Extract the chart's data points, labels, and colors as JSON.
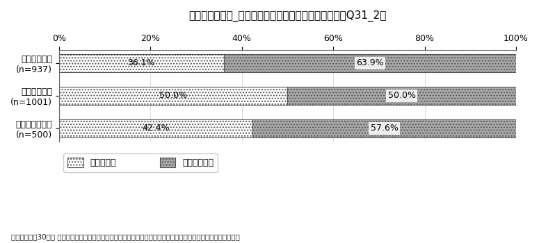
{
  "title": "制度の認知状況_男性の育児休業の再取得：単数回答（Q31_2）",
  "categories": [
    "男性・正社員\n(n=937)",
    "女性・正社員\n(n=1001)",
    "女性・非正社員\n(n=500)"
  ],
  "knew": [
    36.1,
    50.0,
    42.4
  ],
  "did_not_know": [
    63.9,
    50.0,
    57.6
  ],
  "legend_labels": [
    "知っていた",
    "知らなかった"
  ],
  "source": "出典：「平成30年度 仕事と育児の両立に関する実態把握のための調査研究事業」（厚生労働省）より加工して作成",
  "bar_height": 0.55,
  "xlim": [
    0,
    100
  ],
  "xticks": [
    0,
    20,
    40,
    60,
    80,
    100
  ],
  "color_knew": "#ffffff",
  "color_did_not_know": "#aaaaaa",
  "edge_color": "#555555",
  "title_fontsize": 11,
  "label_fontsize": 9,
  "tick_fontsize": 9,
  "source_fontsize": 7.5,
  "legend_fontsize": 9
}
